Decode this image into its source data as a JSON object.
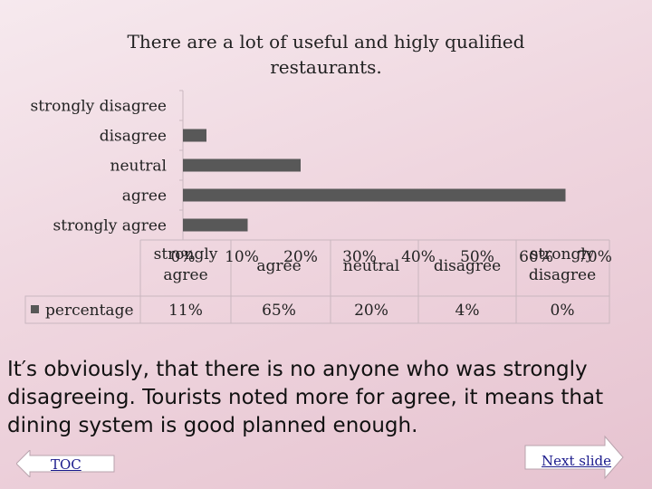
{
  "chart_data": {
    "type": "bar",
    "title": "There are a lot of useful and higly qualified restaurants.",
    "categories": [
      "strongly disagree",
      "disagree",
      "neutral",
      "agree",
      "strongly agree"
    ],
    "series": [
      {
        "name": "percentage",
        "values": [
          0,
          4,
          20,
          65,
          11
        ]
      }
    ],
    "xticks": [
      "0%",
      "10%",
      "20%",
      "30%",
      "40%",
      "50%",
      "60%",
      "70%"
    ],
    "xlim": [
      0,
      70
    ],
    "grid": false,
    "table": {
      "headers": [
        "strongly agree",
        "agree",
        "neutral",
        "disagree",
        "strongly disagree"
      ],
      "values": [
        "11%",
        "65%",
        "20%",
        "4%",
        "0%"
      ]
    },
    "bar_color": "#585858"
  },
  "caption": "It′s obviously, that there is no anyone who was strongly disagreeing. Tourists noted more for agree, it means that dining system is good planned enough.",
  "nav": {
    "toc_label": "TOC",
    "next_label": "Next slide"
  }
}
